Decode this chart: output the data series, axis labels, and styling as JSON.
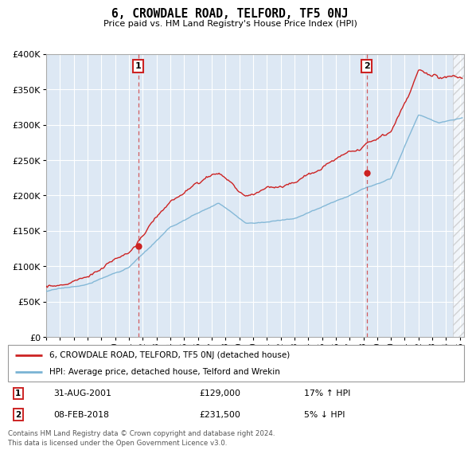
{
  "title": "6, CROWDALE ROAD, TELFORD, TF5 0NJ",
  "subtitle": "Price paid vs. HM Land Registry's House Price Index (HPI)",
  "ylim": [
    0,
    400000
  ],
  "yticks": [
    0,
    50000,
    100000,
    150000,
    200000,
    250000,
    300000,
    350000,
    400000
  ],
  "hpi_color": "#7ab3d4",
  "price_color": "#cc2222",
  "vline_color": "#cc2222",
  "marker1_year_idx": 80,
  "marker1_price": 129000,
  "marker2_year_idx": 278,
  "marker2_price": 231500,
  "legend_label_price": "6, CROWDALE ROAD, TELFORD, TF5 0NJ (detached house)",
  "legend_label_hpi": "HPI: Average price, detached house, Telford and Wrekin",
  "background_color": "#dde8f4",
  "footer": "Contains HM Land Registry data © Crown copyright and database right 2024.\nThis data is licensed under the Open Government Licence v3.0."
}
